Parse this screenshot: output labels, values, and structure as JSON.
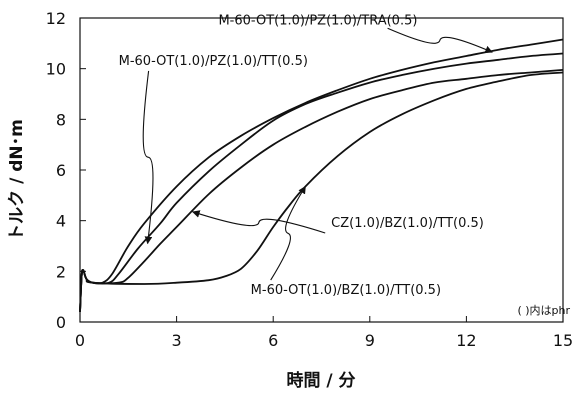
{
  "chart_data": {
    "type": "line",
    "xlabel": "時間 / 分",
    "ylabel": "トルク / dN･m",
    "xlim": [
      0,
      15
    ],
    "ylim": [
      0,
      12
    ],
    "xticks": [
      0,
      3,
      6,
      9,
      12,
      15
    ],
    "yticks": [
      0,
      2,
      4,
      6,
      8,
      10,
      12
    ],
    "grid": false,
    "note": "( )内はphr",
    "series": [
      {
        "name": "M-60-OT(1.0)/PZ(1.0)/TRA(0.5)",
        "points": [
          [
            0,
            0.4
          ],
          [
            0.05,
            1.8
          ],
          [
            0.1,
            2.05
          ],
          [
            0.2,
            1.7
          ],
          [
            0.4,
            1.55
          ],
          [
            0.7,
            1.55
          ],
          [
            1.0,
            1.9
          ],
          [
            1.5,
            3.0
          ],
          [
            2.0,
            3.9
          ],
          [
            3.0,
            5.35
          ],
          [
            4.0,
            6.5
          ],
          [
            5.0,
            7.35
          ],
          [
            6.0,
            8.05
          ],
          [
            7.0,
            8.65
          ],
          [
            8.0,
            9.15
          ],
          [
            9.0,
            9.6
          ],
          [
            10.0,
            9.95
          ],
          [
            11.0,
            10.25
          ],
          [
            12.0,
            10.5
          ],
          [
            13.0,
            10.75
          ],
          [
            14.0,
            10.95
          ],
          [
            15.0,
            11.15
          ]
        ]
      },
      {
        "name": "M-60-OT(1.0)/PZ(1.0)/TT(0.5)",
        "points": [
          [
            0,
            0.4
          ],
          [
            0.05,
            1.8
          ],
          [
            0.1,
            2.05
          ],
          [
            0.2,
            1.7
          ],
          [
            0.4,
            1.55
          ],
          [
            0.9,
            1.55
          ],
          [
            1.2,
            1.9
          ],
          [
            1.8,
            2.9
          ],
          [
            2.5,
            3.9
          ],
          [
            3.0,
            4.7
          ],
          [
            4.0,
            5.95
          ],
          [
            5.0,
            7.0
          ],
          [
            6.0,
            7.95
          ],
          [
            7.0,
            8.6
          ],
          [
            8.0,
            9.05
          ],
          [
            9.0,
            9.45
          ],
          [
            10.0,
            9.75
          ],
          [
            11.0,
            10.0
          ],
          [
            12.0,
            10.2
          ],
          [
            13.0,
            10.35
          ],
          [
            14.0,
            10.5
          ],
          [
            15.0,
            10.6
          ]
        ]
      },
      {
        "name": "CZ(1.0)/BZ(1.0)/TT(0.5)",
        "points": [
          [
            0,
            0.4
          ],
          [
            0.05,
            1.8
          ],
          [
            0.1,
            2.05
          ],
          [
            0.2,
            1.7
          ],
          [
            0.4,
            1.55
          ],
          [
            1.2,
            1.55
          ],
          [
            1.5,
            1.75
          ],
          [
            2.0,
            2.4
          ],
          [
            2.5,
            3.1
          ],
          [
            3.0,
            3.75
          ],
          [
            4.0,
            5.05
          ],
          [
            5.0,
            6.1
          ],
          [
            6.0,
            7.0
          ],
          [
            7.0,
            7.7
          ],
          [
            8.0,
            8.3
          ],
          [
            9.0,
            8.8
          ],
          [
            10.0,
            9.15
          ],
          [
            11.0,
            9.45
          ],
          [
            12.0,
            9.6
          ],
          [
            13.0,
            9.75
          ],
          [
            14.0,
            9.85
          ],
          [
            15.0,
            9.95
          ]
        ]
      },
      {
        "name": "M-60-OT(1.0)/BZ(1.0)/TT(0.5)",
        "points": [
          [
            0,
            0.4
          ],
          [
            0.05,
            1.8
          ],
          [
            0.1,
            2.05
          ],
          [
            0.2,
            1.7
          ],
          [
            0.4,
            1.55
          ],
          [
            2.0,
            1.5
          ],
          [
            3.0,
            1.55
          ],
          [
            4.0,
            1.65
          ],
          [
            4.5,
            1.8
          ],
          [
            5.0,
            2.1
          ],
          [
            5.5,
            2.8
          ],
          [
            6.0,
            3.75
          ],
          [
            6.5,
            4.6
          ],
          [
            7.0,
            5.35
          ],
          [
            8.0,
            6.55
          ],
          [
            9.0,
            7.5
          ],
          [
            10.0,
            8.2
          ],
          [
            11.0,
            8.75
          ],
          [
            12.0,
            9.2
          ],
          [
            13.0,
            9.5
          ],
          [
            14.0,
            9.75
          ],
          [
            15.0,
            9.85
          ]
        ]
      }
    ],
    "annotations": [
      {
        "text": "M-60-OT(1.0)/PZ(1.0)/TRA(0.5)",
        "series": 0,
        "label_x": 4.3,
        "label_y": 11.75,
        "arrow_to": [
          12.8,
          10.65
        ]
      },
      {
        "text": "M-60-OT(1.0)/PZ(1.0)/TT(0.5)",
        "series": 1,
        "label_x": 1.2,
        "label_y": 10.15,
        "arrow_to": [
          2.1,
          3.1
        ]
      },
      {
        "text": "CZ(1.0)/BZ(1.0)/TT(0.5)",
        "series": 2,
        "label_x": 7.8,
        "label_y": 3.75,
        "arrow_to": [
          3.5,
          4.35
        ]
      },
      {
        "text": "M-60-OT(1.0)/BZ(1.0)/TT(0.5)",
        "series": 3,
        "label_x": 5.3,
        "label_y": 1.1,
        "arrow_to": [
          7.0,
          5.35
        ]
      }
    ]
  }
}
